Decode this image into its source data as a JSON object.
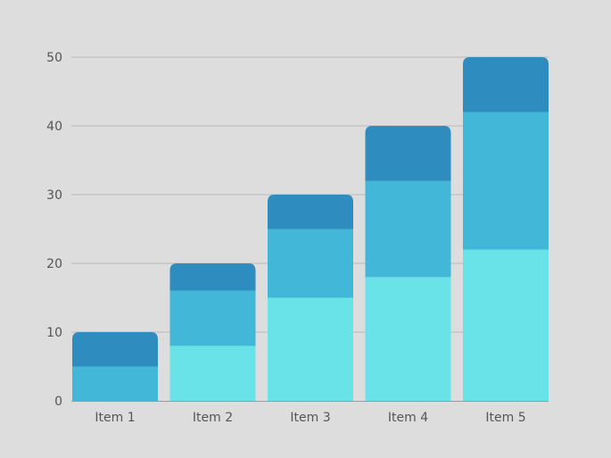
{
  "chart_data": {
    "type": "bar",
    "stacked": true,
    "categories": [
      "Item 1",
      "Item 2",
      "Item 3",
      "Item 4",
      "Item 5"
    ],
    "series": [
      {
        "values": [
          0,
          8,
          15,
          18,
          22
        ],
        "color": "#6ae3e8"
      },
      {
        "values": [
          5,
          8,
          10,
          14,
          20
        ],
        "color": "#43b7d7"
      },
      {
        "values": [
          5,
          4,
          5,
          8,
          8
        ],
        "color": "#2e8cbe"
      }
    ],
    "ylim": [
      0,
      50
    ],
    "yticks": [
      "0",
      "10",
      "20",
      "30",
      "40",
      "50"
    ],
    "grid": true,
    "legend": "none"
  }
}
